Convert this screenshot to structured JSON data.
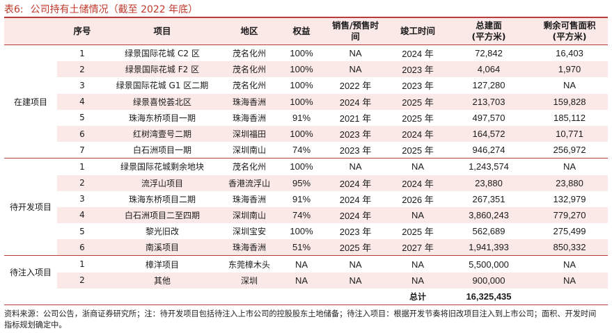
{
  "title": {
    "label": "表6:",
    "text": "公司持有土储情况（截至 2022 年底）"
  },
  "table": {
    "headers": {
      "group": "",
      "index": "序号",
      "project": "项目",
      "region": "地区",
      "equity": "权益",
      "sale_time_line1": "销售/预售时",
      "sale_time_line2": "间",
      "completion": "竣工时间",
      "gfa_line1": "总建面",
      "gfa_line2": "(平方米)",
      "saleable_line1": "剩余可售面积",
      "saleable_line2": "(平方米)"
    },
    "sections": [
      {
        "group": "在建项目",
        "rows": [
          {
            "no": "1",
            "project": "绿景国际花城 C2 区",
            "region": "茂名化州",
            "equity": "100%",
            "sale_time": "NA",
            "completion": "2024 年",
            "gfa": "72,842",
            "saleable": "16,403"
          },
          {
            "no": "2",
            "project": "绿景国际花城 F2 区",
            "region": "茂名化州",
            "equity": "100%",
            "sale_time": "NA",
            "completion": "2023 年",
            "gfa": "4,064",
            "saleable": "1,970"
          },
          {
            "no": "3",
            "project": "绿景国际花城 G1 区二期",
            "region": "茂名化州",
            "equity": "100%",
            "sale_time": "2022 年",
            "completion": "2023 年",
            "gfa": "127,280",
            "saleable": "NA"
          },
          {
            "no": "4",
            "project": "绿景喜悦荟北区",
            "region": "珠海香洲",
            "equity": "100%",
            "sale_time": "2024 年",
            "completion": "2025 年",
            "gfa": "213,703",
            "saleable": "159,828"
          },
          {
            "no": "5",
            "project": "珠海东桥项目一期",
            "region": "珠海香洲",
            "equity": "91%",
            "sale_time": "2021 年",
            "completion": "2025 年",
            "gfa": "497,570",
            "saleable": "185,112"
          },
          {
            "no": "6",
            "project": "红树湾壹号二期",
            "region": "深圳福田",
            "equity": "100%",
            "sale_time": "2023 年",
            "completion": "2024 年",
            "gfa": "164,572",
            "saleable": "10,771"
          },
          {
            "no": "7",
            "project": "白石洲项目一期",
            "region": "深圳南山",
            "equity": "74%",
            "sale_time": "2023 年",
            "completion": "2025 年",
            "gfa": "946,274",
            "saleable": "256,972"
          }
        ]
      },
      {
        "group": "待开发项目",
        "rows": [
          {
            "no": "1",
            "project": "绿景国际花城剩余地块",
            "region": "茂名化州",
            "equity": "100%",
            "sale_time": "NA",
            "completion": "NA",
            "gfa": "1,243,574",
            "saleable": "NA"
          },
          {
            "no": "2",
            "project": "流浮山项目",
            "region": "香港流浮山",
            "equity": "95%",
            "sale_time": "2024 年",
            "completion": "2024 年",
            "gfa": "23,880",
            "saleable": "23,880"
          },
          {
            "no": "3",
            "project": "珠海东桥项目二期",
            "region": "珠海香洲",
            "equity": "91%",
            "sale_time": "2024 年",
            "completion": "2026 年",
            "gfa": "267,351",
            "saleable": "132,979"
          },
          {
            "no": "4",
            "project": "白石洲项目二至四期",
            "region": "深圳南山",
            "equity": "74%",
            "sale_time": "2024 年",
            "completion": "NA",
            "gfa": "3,860,243",
            "saleable": "779,270"
          },
          {
            "no": "5",
            "project": "黎光旧改",
            "region": "深圳宝安",
            "equity": "100%",
            "sale_time": "2023 年",
            "completion": "2025 年",
            "gfa": "562,689",
            "saleable": "275,499"
          },
          {
            "no": "6",
            "project": "南溪项目",
            "region": "珠海香洲",
            "equity": "51%",
            "sale_time": "2025 年",
            "completion": "2027 年",
            "gfa": "1,941,393",
            "saleable": "850,332"
          }
        ]
      },
      {
        "group": "待注入项目",
        "rows": [
          {
            "no": "1",
            "project": "樟洋项目",
            "region": "东莞樟木头",
            "equity": "NA",
            "sale_time": "NA",
            "completion": "NA",
            "gfa": "5,500,000",
            "saleable": "NA"
          },
          {
            "no": "2",
            "project": "其他",
            "region": "深圳",
            "equity": "NA",
            "sale_time": "NA",
            "completion": "NA",
            "gfa": "900,000",
            "saleable": "NA"
          }
        ]
      }
    ],
    "total": {
      "label": "总计",
      "gfa": "16,325,435"
    }
  },
  "footnote": "资料来源：公司公告，浙商证券研究所；注：待开发项目包括待注入上市公司的控股股东土地储备；待注入项目：根据开发节奏将旧改项目注入到上市公司；面积、开发时间指标规划确定中。",
  "colors": {
    "accent": "#c0392b",
    "rule": "#b83b3b",
    "row_shade": "#fbe9e7"
  }
}
